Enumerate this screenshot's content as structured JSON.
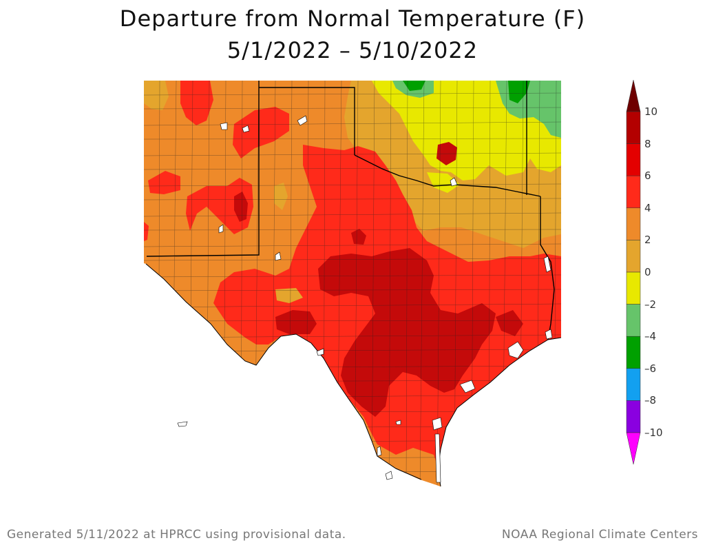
{
  "title": {
    "line1": "Departure from Normal Temperature (F)",
    "line2": "5/1/2022 – 5/10/2022"
  },
  "footer": {
    "left": "Generated 5/11/2022 at HPRCC using provisional data.",
    "right": "NOAA Regional Climate Centers"
  },
  "legend": {
    "tick_labels": [
      "10",
      "8",
      "6",
      "4",
      "2",
      "0",
      "–2",
      "–4",
      "–6",
      "–8",
      "–10"
    ],
    "bins": [
      {
        "range": "8 to 10",
        "color": "#b30000"
      },
      {
        "range": "6 to 8",
        "color": "#e30000"
      },
      {
        "range": "4 to 6",
        "color": "#ff2a1a"
      },
      {
        "range": "2 to 4",
        "color": "#ee8a2a"
      },
      {
        "range": "0 to 2",
        "color": "#e4a52d"
      },
      {
        "range": "-2 to 0",
        "color": "#e8e800"
      },
      {
        "range": "-4 to -2",
        "color": "#66c46a"
      },
      {
        "range": "-6 to -4",
        "color": "#00a000"
      },
      {
        "range": "-8 to -6",
        "color": "#12a0f0"
      },
      {
        "range": "-10 to -8",
        "color": "#8a00e0"
      }
    ],
    "over_color": "#6e0000",
    "under_color": "#ff00ff"
  },
  "map_colors": {
    "plus_6_8": "#ff2a1a",
    "plus_8_10": "#c40a0a",
    "plus_8_10_dark": "#a60a0a",
    "plus_4_6": "#ee8a2a",
    "plus_2_4": "#e4a52d",
    "zero_2": "#e8e800",
    "minus_0_2": "#66c46a",
    "minus_2_4": "#00a000",
    "lines": "#111111",
    "water": "#ffffff"
  }
}
